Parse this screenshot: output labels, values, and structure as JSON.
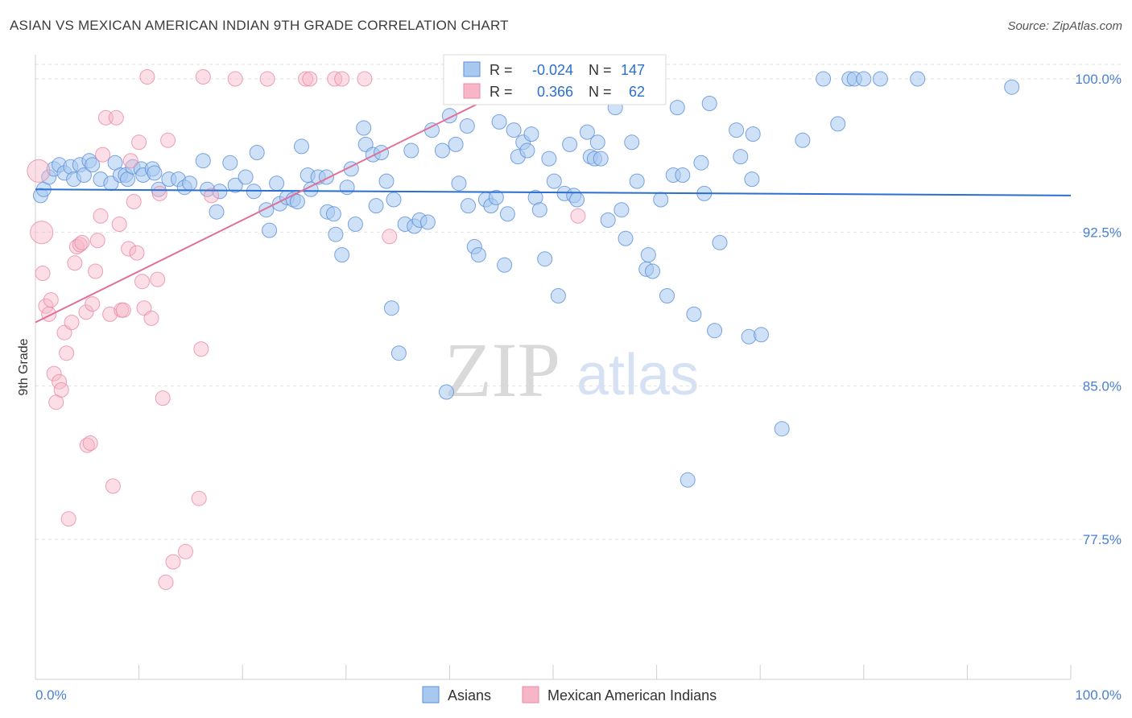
{
  "header": {
    "title": "ASIAN VS MEXICAN AMERICAN INDIAN 9TH GRADE CORRELATION CHART",
    "source": "Source: ZipAtlas.com"
  },
  "watermark": {
    "zip": "ZIP",
    "atlas": "atlas"
  },
  "colors": {
    "asian_fill": "#a8c8f0",
    "asian_stroke": "#5b8fd9",
    "asian_line": "#2a6fd1",
    "mexican_fill": "#f7b6c8",
    "mexican_stroke": "#e98aa6",
    "mexican_line": "#e0709a",
    "grid": "#e2e2e2",
    "tick_label": "#4a7fd4"
  },
  "stats_box": {
    "rows": [
      {
        "r_label": "R =",
        "r_value": "-0.024",
        "n_label": "N =",
        "n_value": "147"
      },
      {
        "r_label": "R =",
        "r_value": "0.366",
        "n_label": "N =",
        "n_value": "62"
      }
    ]
  },
  "chart_data": {
    "type": "scatter",
    "title": "ASIAN VS MEXICAN AMERICAN INDIAN 9TH GRADE CORRELATION CHART",
    "xlabel": "",
    "ylabel": "9th Grade",
    "xlim": [
      0,
      100
    ],
    "ylim": [
      70,
      101.5
    ],
    "x_tick_labels": [
      "0.0%",
      "100.0%"
    ],
    "y_ticks": [
      {
        "value": 100.0,
        "label": "100.0%"
      },
      {
        "value": 92.5,
        "label": "92.5%"
      },
      {
        "value": 85.0,
        "label": "85.0%"
      },
      {
        "value": 77.5,
        "label": "77.5%"
      }
    ],
    "legend": {
      "position": "bottom-center",
      "entries": [
        "Asians",
        "Mexican American Indians"
      ]
    },
    "series": [
      {
        "name": "Asians",
        "trend": {
          "x": [
            0,
            100
          ],
          "y": [
            94.6,
            94.3
          ]
        },
        "points": [
          [
            0.5,
            94.3
          ],
          [
            0.8,
            94.6
          ],
          [
            1.3,
            95.2
          ],
          [
            1.8,
            95.6
          ],
          [
            2.3,
            95.8
          ],
          [
            2.8,
            95.4
          ],
          [
            3.4,
            95.7
          ],
          [
            3.7,
            95.1
          ],
          [
            4.3,
            95.8
          ],
          [
            4.7,
            95.3
          ],
          [
            5.2,
            96.0
          ],
          [
            5.5,
            95.8
          ],
          [
            6.3,
            95.1
          ],
          [
            7.3,
            94.9
          ],
          [
            7.7,
            95.9
          ],
          [
            8.2,
            95.3
          ],
          [
            8.7,
            95.3
          ],
          [
            8.9,
            95.1
          ],
          [
            9.4,
            95.7
          ],
          [
            10.2,
            95.6
          ],
          [
            10.4,
            95.3
          ],
          [
            11.3,
            95.6
          ],
          [
            11.5,
            95.4
          ],
          [
            11.9,
            94.6
          ],
          [
            12.9,
            95.1
          ],
          [
            13.8,
            95.1
          ],
          [
            14.4,
            94.7
          ],
          [
            14.9,
            94.9
          ],
          [
            16.2,
            96.0
          ],
          [
            16.6,
            94.6
          ],
          [
            17.5,
            93.5
          ],
          [
            17.8,
            94.5
          ],
          [
            18.8,
            95.9
          ],
          [
            19.3,
            94.8
          ],
          [
            20.3,
            95.2
          ],
          [
            21.1,
            94.5
          ],
          [
            21.4,
            96.4
          ],
          [
            22.3,
            93.6
          ],
          [
            22.6,
            92.6
          ],
          [
            23.3,
            94.9
          ],
          [
            23.6,
            93.9
          ],
          [
            24.3,
            94.2
          ],
          [
            24.9,
            94.1
          ],
          [
            25.3,
            94.0
          ],
          [
            25.7,
            96.7
          ],
          [
            26.3,
            95.3
          ],
          [
            26.6,
            94.6
          ],
          [
            27.3,
            95.2
          ],
          [
            28.1,
            95.2
          ],
          [
            28.2,
            93.5
          ],
          [
            28.8,
            93.4
          ],
          [
            29.0,
            92.4
          ],
          [
            29.6,
            91.4
          ],
          [
            30.1,
            94.7
          ],
          [
            30.5,
            95.6
          ],
          [
            30.9,
            92.9
          ],
          [
            31.7,
            97.6
          ],
          [
            31.9,
            96.8
          ],
          [
            32.6,
            96.3
          ],
          [
            32.9,
            93.8
          ],
          [
            33.4,
            96.4
          ],
          [
            33.9,
            95.0
          ],
          [
            34.4,
            88.8
          ],
          [
            34.6,
            94.1
          ],
          [
            35.1,
            86.6
          ],
          [
            35.7,
            92.9
          ],
          [
            36.3,
            96.5
          ],
          [
            36.6,
            92.8
          ],
          [
            37.1,
            93.1
          ],
          [
            37.9,
            93.0
          ],
          [
            38.3,
            97.5
          ],
          [
            39.3,
            96.5
          ],
          [
            39.7,
            84.7
          ],
          [
            40.0,
            98.2
          ],
          [
            40.6,
            96.8
          ],
          [
            40.9,
            94.9
          ],
          [
            41.7,
            97.7
          ],
          [
            41.8,
            93.8
          ],
          [
            42.4,
            91.8
          ],
          [
            42.8,
            91.4
          ],
          [
            43.5,
            94.1
          ],
          [
            44.0,
            93.8
          ],
          [
            44.5,
            94.2
          ],
          [
            44.8,
            97.9
          ],
          [
            45.3,
            90.9
          ],
          [
            45.6,
            93.4
          ],
          [
            46.2,
            97.5
          ],
          [
            46.6,
            96.2
          ],
          [
            47.1,
            96.9
          ],
          [
            47.5,
            96.5
          ],
          [
            47.9,
            97.3
          ],
          [
            48.3,
            94.2
          ],
          [
            48.7,
            93.6
          ],
          [
            49.2,
            91.2
          ],
          [
            49.6,
            96.1
          ],
          [
            50.1,
            95.0
          ],
          [
            50.5,
            89.4
          ],
          [
            51.1,
            94.4
          ],
          [
            51.6,
            96.8
          ],
          [
            52.0,
            94.3
          ],
          [
            52.3,
            94.1
          ],
          [
            53.3,
            97.4
          ],
          [
            53.6,
            96.2
          ],
          [
            54.0,
            96.1
          ],
          [
            54.3,
            96.9
          ],
          [
            54.6,
            96.1
          ],
          [
            55.3,
            93.1
          ],
          [
            56.0,
            98.6
          ],
          [
            56.6,
            93.6
          ],
          [
            57.0,
            92.2
          ],
          [
            57.6,
            96.9
          ],
          [
            58.1,
            95.0
          ],
          [
            59.0,
            90.7
          ],
          [
            59.2,
            91.4
          ],
          [
            59.6,
            90.6
          ],
          [
            60.4,
            94.1
          ],
          [
            61.0,
            89.4
          ],
          [
            61.6,
            95.3
          ],
          [
            62.0,
            98.6
          ],
          [
            62.5,
            95.3
          ],
          [
            63.0,
            80.4
          ],
          [
            63.6,
            88.5
          ],
          [
            64.3,
            95.9
          ],
          [
            64.6,
            94.4
          ],
          [
            65.1,
            98.8
          ],
          [
            65.6,
            87.7
          ],
          [
            66.1,
            92.0
          ],
          [
            67.7,
            97.5
          ],
          [
            68.1,
            96.2
          ],
          [
            68.9,
            87.4
          ],
          [
            69.2,
            95.1
          ],
          [
            69.3,
            97.3
          ],
          [
            70.1,
            87.5
          ],
          [
            72.1,
            82.9
          ],
          [
            74.1,
            97.0
          ],
          [
            76.1,
            100.0
          ],
          [
            77.5,
            97.8
          ],
          [
            78.6,
            100.0
          ],
          [
            79.1,
            100.0
          ],
          [
            80.0,
            100.0
          ],
          [
            81.6,
            100.0
          ],
          [
            85.2,
            100.0
          ],
          [
            94.3,
            99.6
          ]
        ]
      },
      {
        "name": "Mexican American Indians",
        "trend": {
          "x": [
            0,
            47.6
          ],
          "y": [
            88.1,
            100.0
          ]
        },
        "points": [
          [
            0.3,
            95.5
          ],
          [
            0.6,
            92.5
          ],
          [
            0.7,
            90.5
          ],
          [
            1.0,
            88.9
          ],
          [
            1.3,
            88.5
          ],
          [
            1.5,
            89.2
          ],
          [
            1.8,
            85.6
          ],
          [
            2.0,
            84.2
          ],
          [
            2.3,
            85.2
          ],
          [
            2.5,
            84.8
          ],
          [
            2.8,
            87.6
          ],
          [
            3.0,
            86.6
          ],
          [
            3.2,
            78.5
          ],
          [
            3.5,
            88.1
          ],
          [
            3.8,
            91.0
          ],
          [
            4.0,
            91.8
          ],
          [
            4.3,
            91.9
          ],
          [
            4.5,
            92.0
          ],
          [
            4.9,
            88.6
          ],
          [
            5.0,
            82.1
          ],
          [
            5.3,
            82.2
          ],
          [
            5.5,
            89.0
          ],
          [
            5.8,
            90.6
          ],
          [
            6.0,
            92.1
          ],
          [
            6.3,
            93.3
          ],
          [
            6.5,
            96.3
          ],
          [
            6.8,
            98.1
          ],
          [
            7.2,
            88.5
          ],
          [
            7.5,
            80.1
          ],
          [
            7.8,
            98.1
          ],
          [
            8.1,
            92.9
          ],
          [
            8.3,
            88.7
          ],
          [
            8.5,
            88.7
          ],
          [
            9.0,
            91.7
          ],
          [
            9.2,
            96.0
          ],
          [
            9.5,
            94.0
          ],
          [
            9.8,
            91.5
          ],
          [
            10.0,
            96.9
          ],
          [
            10.3,
            90.1
          ],
          [
            10.5,
            88.8
          ],
          [
            10.8,
            100.1
          ],
          [
            11.2,
            88.3
          ],
          [
            11.8,
            90.2
          ],
          [
            12.0,
            94.4
          ],
          [
            12.3,
            84.4
          ],
          [
            12.6,
            75.4
          ],
          [
            12.8,
            97.0
          ],
          [
            13.3,
            76.4
          ],
          [
            14.5,
            76.9
          ],
          [
            15.8,
            79.5
          ],
          [
            16.0,
            86.8
          ],
          [
            17.0,
            94.3
          ],
          [
            16.2,
            100.1
          ],
          [
            19.3,
            100.0
          ],
          [
            22.4,
            100.0
          ],
          [
            26.1,
            100.0
          ],
          [
            26.5,
            100.0
          ],
          [
            28.9,
            100.0
          ],
          [
            29.6,
            100.0
          ],
          [
            31.8,
            100.0
          ],
          [
            34.2,
            92.3
          ],
          [
            52.4,
            93.3
          ]
        ]
      }
    ]
  }
}
